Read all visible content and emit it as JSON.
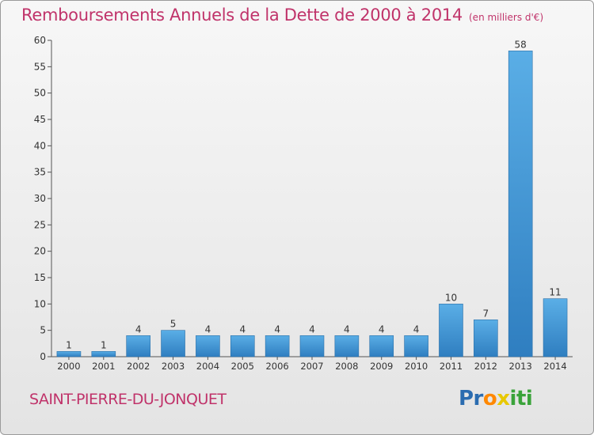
{
  "header": {
    "title": "Remboursements Annuels de la Dette de 2000 à 2014",
    "unit": "(en milliers d'€)"
  },
  "footer": {
    "commune": "SAINT-PIERRE-DU-JONQUET",
    "logo": "Proxiti"
  },
  "colors": {
    "title": "#c0336a",
    "bar_top": "#5aaee6",
    "bar_bottom": "#2f7ec0"
  },
  "chart_data": {
    "type": "bar",
    "categories": [
      "2000",
      "2001",
      "2002",
      "2003",
      "2004",
      "2005",
      "2006",
      "2007",
      "2008",
      "2009",
      "2010",
      "2011",
      "2012",
      "2013",
      "2014"
    ],
    "values": [
      1,
      1,
      4,
      5,
      4,
      4,
      4,
      4,
      4,
      4,
      4,
      10,
      7,
      58,
      11
    ],
    "data_labels": [
      "1",
      "1",
      "4",
      "5",
      "4",
      "4",
      "4",
      "4",
      "4",
      "4",
      "4",
      "10",
      "7",
      "58",
      "11"
    ],
    "title": "Remboursements Annuels de la Dette de 2000 à 2014",
    "ylim": [
      0,
      60
    ],
    "yticks": [
      0,
      5,
      10,
      15,
      20,
      25,
      30,
      35,
      40,
      45,
      50,
      55,
      60
    ],
    "grid": false,
    "legend": "none"
  }
}
